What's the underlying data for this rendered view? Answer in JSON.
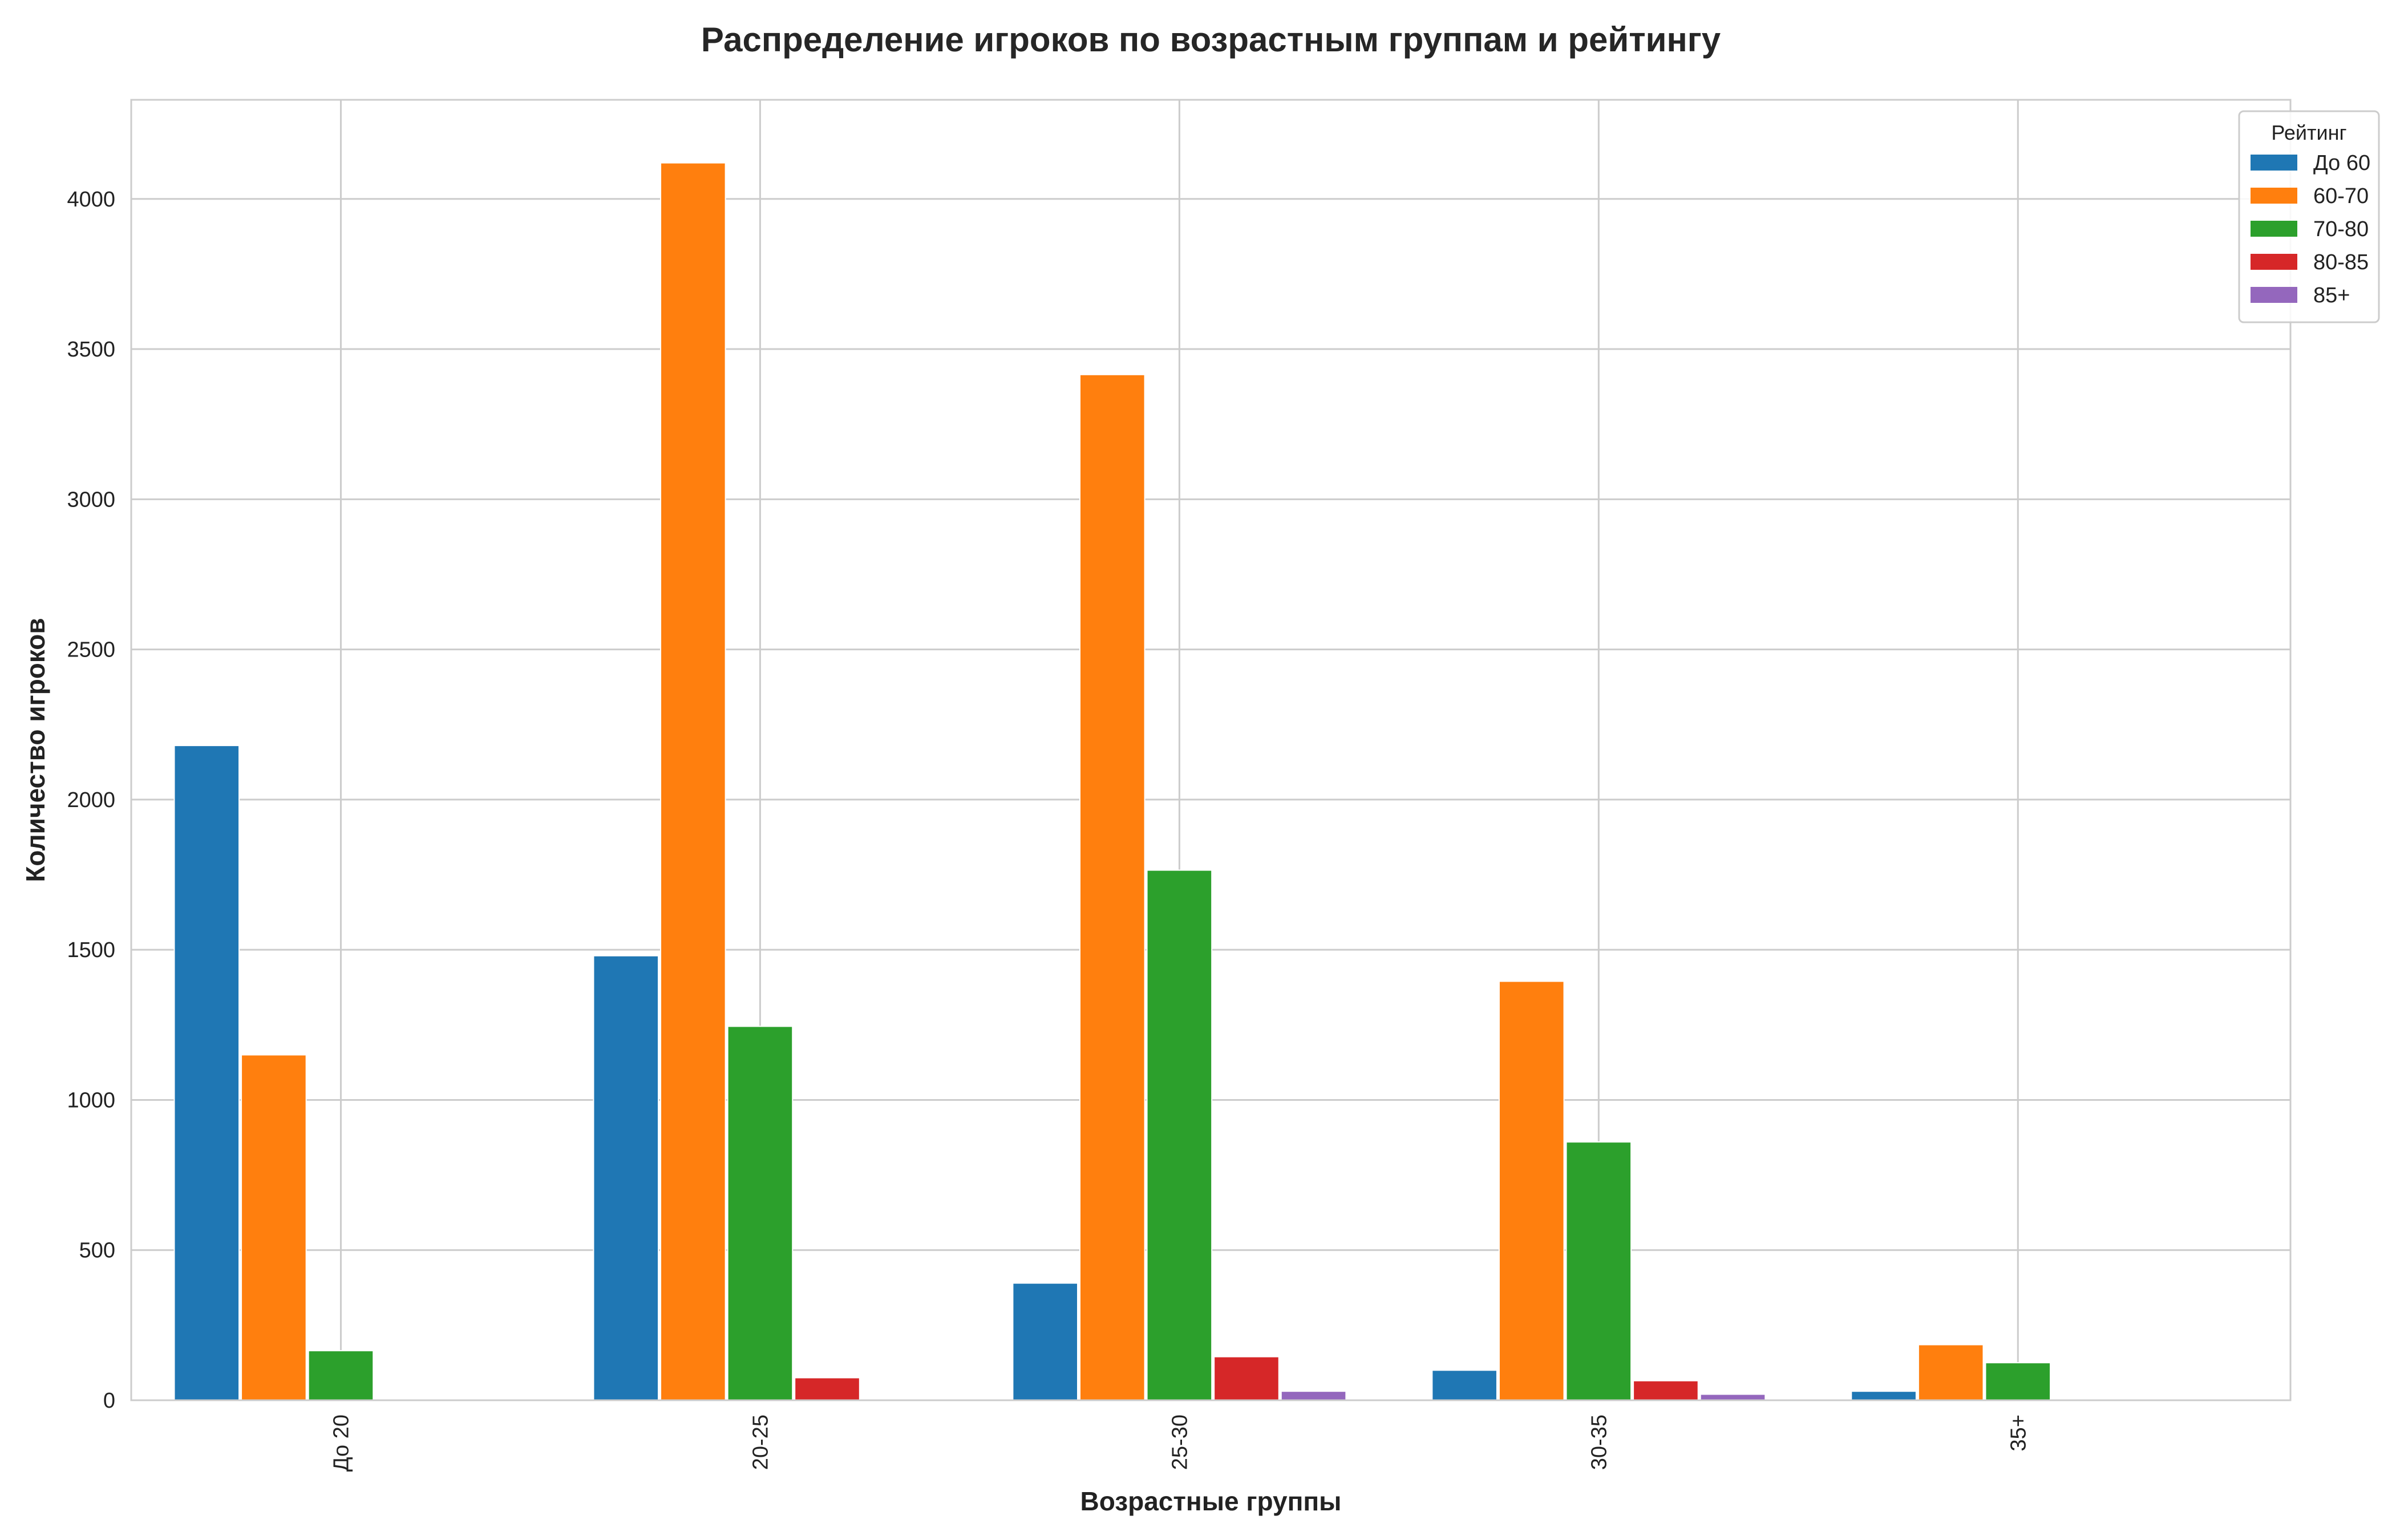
{
  "chart_data": {
    "type": "bar",
    "title": "Распределение игроков по возрастным группам и рейтингу",
    "xlabel": "Возрастные группы",
    "ylabel": "Количество игроков",
    "categories": [
      "До 20",
      "20-25",
      "25-30",
      "30-35",
      "35+"
    ],
    "ylim": [
      0,
      4330
    ],
    "yticks": [
      0,
      500,
      1000,
      1500,
      2000,
      2500,
      3000,
      3500,
      4000
    ],
    "grid": true,
    "legend_title": "Рейтинг",
    "legend_position": "top-right",
    "series": [
      {
        "name": "До 60",
        "color": "#1f77b4",
        "values": [
          2180,
          1480,
          390,
          100,
          30
        ]
      },
      {
        "name": "60-70",
        "color": "#ff7f0e",
        "values": [
          1150,
          4120,
          3415,
          1395,
          185
        ]
      },
      {
        "name": "70-80",
        "color": "#2ca02c",
        "values": [
          165,
          1245,
          1765,
          860,
          125
        ]
      },
      {
        "name": "80-85",
        "color": "#d62728",
        "values": [
          0,
          75,
          145,
          65,
          0
        ]
      },
      {
        "name": "85+",
        "color": "#9467bd",
        "values": [
          0,
          0,
          30,
          20,
          0
        ]
      }
    ]
  }
}
